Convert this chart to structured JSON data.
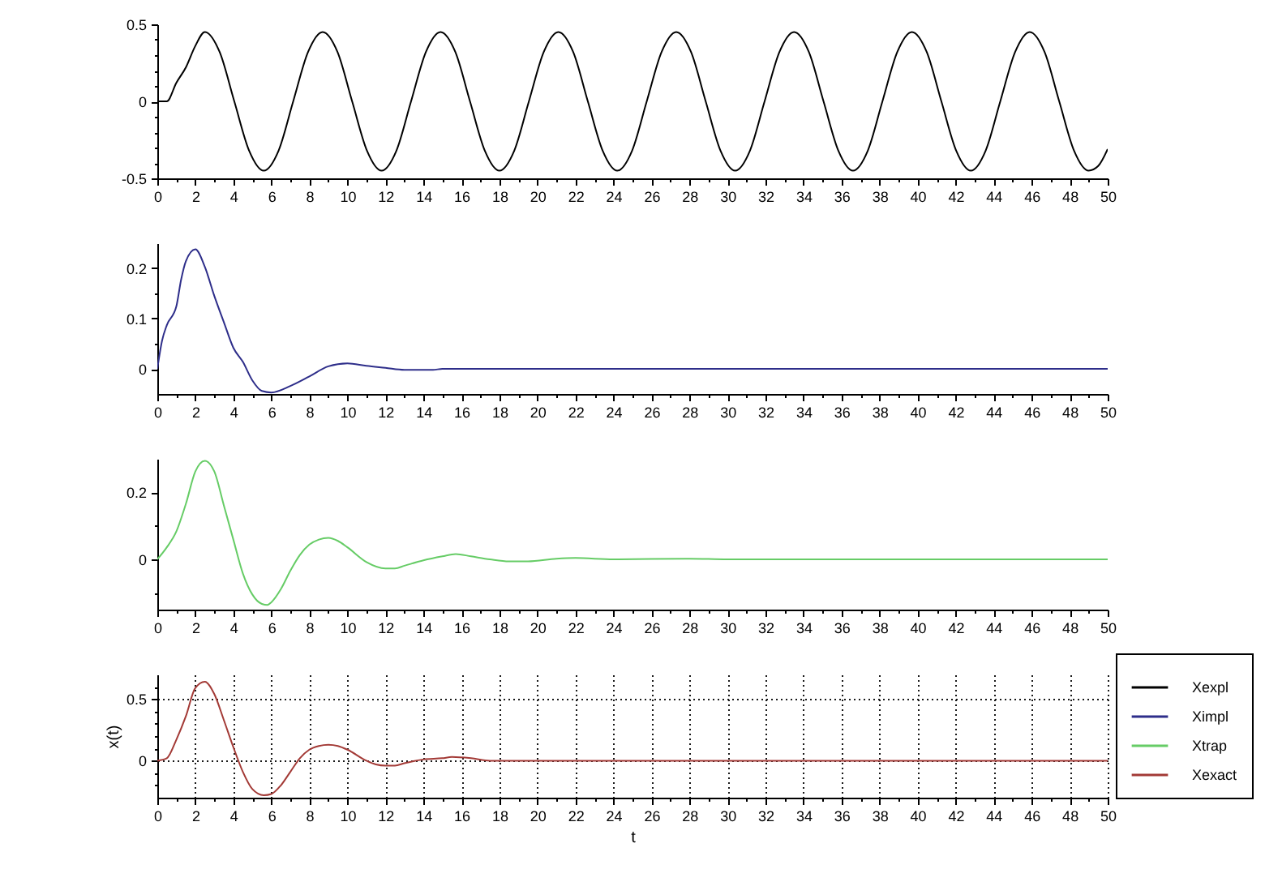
{
  "chart_data": [
    {
      "type": "line",
      "x": [
        0,
        0.5,
        1,
        1.5,
        2,
        2.5,
        3.28,
        4.05,
        4.83,
        5.6,
        6.38,
        7.15,
        7.93,
        8.7,
        9.48,
        10.25,
        11.03,
        11.8,
        12.58,
        13.35,
        14.13,
        14.9,
        15.68,
        16.45,
        17.23,
        18.0,
        18.78,
        19.55,
        20.33,
        21.1,
        21.88,
        22.65,
        23.43,
        24.2,
        24.98,
        25.75,
        26.53,
        27.3,
        28.08,
        28.85,
        29.63,
        30.4,
        31.18,
        31.95,
        32.73,
        33.5,
        34.28,
        35.05,
        35.83,
        36.6,
        37.38,
        38.15,
        38.93,
        39.7,
        40.48,
        41.25,
        42.03,
        42.8,
        43.58,
        44.35,
        45.13,
        45.9,
        46.68,
        47.45,
        48.23,
        49.0,
        49.5,
        50
      ],
      "series": [
        {
          "name": "Xexpl",
          "color": "#000000",
          "values": [
            0,
            0,
            0.12,
            0.22,
            0.36,
            0.45,
            0.32,
            0,
            -0.32,
            -0.45,
            -0.32,
            0,
            0.32,
            0.45,
            0.32,
            0,
            -0.32,
            -0.45,
            -0.32,
            0,
            0.32,
            0.45,
            0.32,
            0,
            -0.32,
            -0.45,
            -0.32,
            0,
            0.32,
            0.45,
            0.32,
            0,
            -0.32,
            -0.45,
            -0.32,
            0,
            0.32,
            0.45,
            0.32,
            0,
            -0.32,
            -0.45,
            -0.32,
            0,
            0.32,
            0.45,
            0.32,
            0,
            -0.32,
            -0.45,
            -0.32,
            0,
            0.32,
            0.45,
            0.32,
            0,
            -0.32,
            -0.45,
            -0.32,
            0,
            0.32,
            0.45,
            0.32,
            0,
            -0.32,
            -0.45,
            -0.42,
            -0.31
          ]
        }
      ],
      "xlim": [
        0,
        50
      ],
      "xticks": [
        0,
        {
          "value": 1,
          "label": null
        },
        2,
        {
          "value": 3,
          "label": null
        },
        4,
        {
          "value": 5,
          "label": null
        },
        6,
        {
          "value": 7,
          "label": null
        },
        8,
        {
          "value": 9,
          "label": null
        },
        10,
        {
          "value": 11,
          "label": null
        },
        12,
        {
          "value": 13,
          "label": null
        },
        14,
        {
          "value": 15,
          "label": null
        },
        16,
        {
          "value": 17,
          "label": null
        },
        18,
        {
          "value": 19,
          "label": null
        },
        20,
        {
          "value": 21,
          "label": null
        },
        22,
        {
          "value": 23,
          "label": null
        },
        24,
        {
          "value": 25,
          "label": null
        },
        26,
        {
          "value": 27,
          "label": null
        },
        28,
        {
          "value": 29,
          "label": null
        },
        30,
        {
          "value": 31,
          "label": null
        },
        32,
        {
          "value": 33,
          "label": null
        },
        34,
        {
          "value": 35,
          "label": null
        },
        36,
        {
          "value": 37,
          "label": null
        },
        38,
        {
          "value": 39,
          "label": null
        },
        40,
        {
          "value": 41,
          "label": null
        },
        42,
        {
          "value": 43,
          "label": null
        },
        44,
        {
          "value": 45,
          "label": null
        },
        46,
        {
          "value": 47,
          "label": null
        },
        48,
        {
          "value": 49,
          "label": null
        },
        50
      ],
      "ylim": [
        -0.5,
        0.5
      ],
      "yticks": [
        -0.5,
        {
          "value": -0.4,
          "label": null
        },
        {
          "value": -0.3,
          "label": null
        },
        {
          "value": -0.2,
          "label": null
        },
        {
          "value": -0.1,
          "label": null
        },
        0,
        {
          "value": 0.1,
          "label": null
        },
        {
          "value": 0.2,
          "label": null
        },
        {
          "value": 0.3,
          "label": null
        },
        {
          "value": 0.4,
          "label": null
        },
        0.5
      ]
    },
    {
      "type": "line",
      "x": [
        0,
        0.25,
        0.5,
        1,
        1.25,
        1.5,
        2,
        2.5,
        3,
        3.5,
        4,
        4.5,
        5,
        5.5,
        6,
        7,
        8,
        9,
        10,
        11,
        12,
        13,
        14.5,
        15,
        50
      ],
      "series": [
        {
          "name": "Ximpl",
          "color": "#2e2e8a",
          "values": [
            0,
            0.056,
            0.087,
            0.124,
            0.177,
            0.214,
            0.238,
            0.203,
            0.145,
            0.093,
            0.042,
            0.014,
            -0.023,
            -0.044,
            -0.047,
            -0.034,
            -0.015,
            0.005,
            0.011,
            0.006,
            0.002,
            -0.002,
            -0.002,
            0,
            0
          ]
        }
      ],
      "xlim": [
        0,
        50
      ],
      "xticks": [
        0,
        {
          "value": 1,
          "label": null
        },
        2,
        {
          "value": 3,
          "label": null
        },
        4,
        {
          "value": 5,
          "label": null
        },
        6,
        {
          "value": 7,
          "label": null
        },
        8,
        {
          "value": 9,
          "label": null
        },
        10,
        {
          "value": 11,
          "label": null
        },
        12,
        {
          "value": 13,
          "label": null
        },
        14,
        {
          "value": 15,
          "label": null
        },
        16,
        {
          "value": 17,
          "label": null
        },
        18,
        {
          "value": 19,
          "label": null
        },
        20,
        {
          "value": 21,
          "label": null
        },
        22,
        {
          "value": 23,
          "label": null
        },
        24,
        {
          "value": 25,
          "label": null
        },
        26,
        {
          "value": 27,
          "label": null
        },
        28,
        {
          "value": 29,
          "label": null
        },
        30,
        {
          "value": 31,
          "label": null
        },
        32,
        {
          "value": 33,
          "label": null
        },
        34,
        {
          "value": 35,
          "label": null
        },
        36,
        {
          "value": 37,
          "label": null
        },
        38,
        {
          "value": 39,
          "label": null
        },
        40,
        {
          "value": 41,
          "label": null
        },
        42,
        {
          "value": 43,
          "label": null
        },
        44,
        {
          "value": 45,
          "label": null
        },
        46,
        {
          "value": 47,
          "label": null
        },
        48,
        {
          "value": 49,
          "label": null
        },
        50
      ],
      "ylim": [
        -0.05,
        0.25
      ],
      "yticks": [
        0,
        {
          "value": 0.05,
          "label": null
        },
        0.1,
        {
          "value": 0.15,
          "label": null
        },
        0.2
      ]
    },
    {
      "type": "line",
      "x": [
        0,
        0.5,
        1,
        1.5,
        2,
        2.5,
        3,
        3.5,
        4,
        4.5,
        5,
        5.5,
        5.8,
        6,
        6.5,
        7,
        7.5,
        8,
        8.5,
        9,
        9.5,
        10,
        11,
        12,
        12.5,
        13,
        14,
        15,
        15.7,
        16.5,
        17.5,
        18.5,
        19.5,
        21,
        22,
        24,
        28,
        30,
        50
      ],
      "series": [
        {
          "name": "Xtrap",
          "color": "#66cc66",
          "values": [
            0,
            0.036,
            0.083,
            0.165,
            0.262,
            0.294,
            0.262,
            0.161,
            0.059,
            -0.042,
            -0.105,
            -0.133,
            -0.136,
            -0.128,
            -0.089,
            -0.034,
            0.013,
            0.044,
            0.059,
            0.064,
            0.055,
            0.036,
            -0.008,
            -0.027,
            -0.027,
            -0.019,
            -0.003,
            0.009,
            0.016,
            0.009,
            0,
            -0.006,
            -0.006,
            0.002,
            0.004,
            0,
            0.002,
            0,
            0
          ]
        }
      ],
      "xlim": [
        0,
        50
      ],
      "xticks": [
        0,
        {
          "value": 1,
          "label": null
        },
        2,
        {
          "value": 3,
          "label": null
        },
        4,
        {
          "value": 5,
          "label": null
        },
        6,
        {
          "value": 7,
          "label": null
        },
        8,
        {
          "value": 9,
          "label": null
        },
        10,
        {
          "value": 11,
          "label": null
        },
        12,
        {
          "value": 13,
          "label": null
        },
        14,
        {
          "value": 15,
          "label": null
        },
        16,
        {
          "value": 17,
          "label": null
        },
        18,
        {
          "value": 19,
          "label": null
        },
        20,
        {
          "value": 21,
          "label": null
        },
        22,
        {
          "value": 23,
          "label": null
        },
        24,
        {
          "value": 25,
          "label": null
        },
        26,
        {
          "value": 27,
          "label": null
        },
        28,
        {
          "value": 29,
          "label": null
        },
        30,
        {
          "value": 31,
          "label": null
        },
        32,
        {
          "value": 33,
          "label": null
        },
        34,
        {
          "value": 35,
          "label": null
        },
        36,
        {
          "value": 37,
          "label": null
        },
        38,
        {
          "value": 39,
          "label": null
        },
        40,
        {
          "value": 41,
          "label": null
        },
        42,
        {
          "value": 43,
          "label": null
        },
        44,
        {
          "value": 45,
          "label": null
        },
        46,
        {
          "value": 47,
          "label": null
        },
        48,
        {
          "value": 49,
          "label": null
        },
        50
      ],
      "ylim": [
        -0.15,
        0.3
      ],
      "yticks": [
        {
          "value": -0.1,
          "label": null
        },
        0,
        {
          "value": 0.1,
          "label": null
        },
        0.2
      ]
    },
    {
      "type": "line",
      "x": [
        0,
        0.5,
        1,
        1.5,
        2,
        2.5,
        3,
        3.5,
        4,
        4.5,
        5,
        5.6,
        6,
        6.5,
        7,
        7.5,
        8,
        8.5,
        9,
        9.5,
        10,
        11,
        11.5,
        12,
        12.5,
        13,
        14,
        15,
        15.5,
        16.5,
        17.5,
        50
      ],
      "series": [
        {
          "name": "Xexact",
          "color": "#a33a36",
          "values": [
            0,
            0.02,
            0.17,
            0.36,
            0.59,
            0.64,
            0.54,
            0.33,
            0.11,
            -0.09,
            -0.23,
            -0.28,
            -0.27,
            -0.2,
            -0.09,
            0.02,
            0.09,
            0.12,
            0.13,
            0.12,
            0.09,
            0,
            -0.03,
            -0.04,
            -0.04,
            -0.02,
            0.01,
            0.02,
            0.03,
            0.02,
            0,
            0
          ]
        }
      ],
      "xlim": [
        0,
        50
      ],
      "xticks": [
        0,
        {
          "value": 1,
          "label": null
        },
        2,
        {
          "value": 3,
          "label": null
        },
        4,
        {
          "value": 5,
          "label": null
        },
        6,
        {
          "value": 7,
          "label": null
        },
        8,
        {
          "value": 9,
          "label": null
        },
        10,
        {
          "value": 11,
          "label": null
        },
        12,
        {
          "value": 13,
          "label": null
        },
        14,
        {
          "value": 15,
          "label": null
        },
        16,
        {
          "value": 17,
          "label": null
        },
        18,
        {
          "value": 19,
          "label": null
        },
        20,
        {
          "value": 21,
          "label": null
        },
        22,
        {
          "value": 23,
          "label": null
        },
        24,
        {
          "value": 25,
          "label": null
        },
        26,
        {
          "value": 27,
          "label": null
        },
        28,
        {
          "value": 29,
          "label": null
        },
        30,
        {
          "value": 31,
          "label": null
        },
        32,
        {
          "value": 33,
          "label": null
        },
        34,
        {
          "value": 35,
          "label": null
        },
        36,
        {
          "value": 37,
          "label": null
        },
        38,
        {
          "value": 39,
          "label": null
        },
        40,
        {
          "value": 41,
          "label": null
        },
        42,
        {
          "value": 43,
          "label": null
        },
        44,
        {
          "value": 45,
          "label": null
        },
        46,
        {
          "value": 47,
          "label": null
        },
        48,
        {
          "value": 49,
          "label": null
        },
        50
      ],
      "ylim": [
        -0.3,
        0.7
      ],
      "yticks": [
        {
          "value": -0.2,
          "label": null
        },
        {
          "value": -0.1,
          "label": null
        },
        0,
        {
          "value": 0.1,
          "label": null
        },
        {
          "value": 0.2,
          "label": null
        },
        {
          "value": 0.3,
          "label": null
        },
        {
          "value": 0.4,
          "label": null
        },
        0.5,
        {
          "value": 0.6,
          "label": null
        }
      ],
      "xlabel": "t",
      "ylabel": "x(t)",
      "grid": true,
      "legend": "right"
    }
  ]
}
